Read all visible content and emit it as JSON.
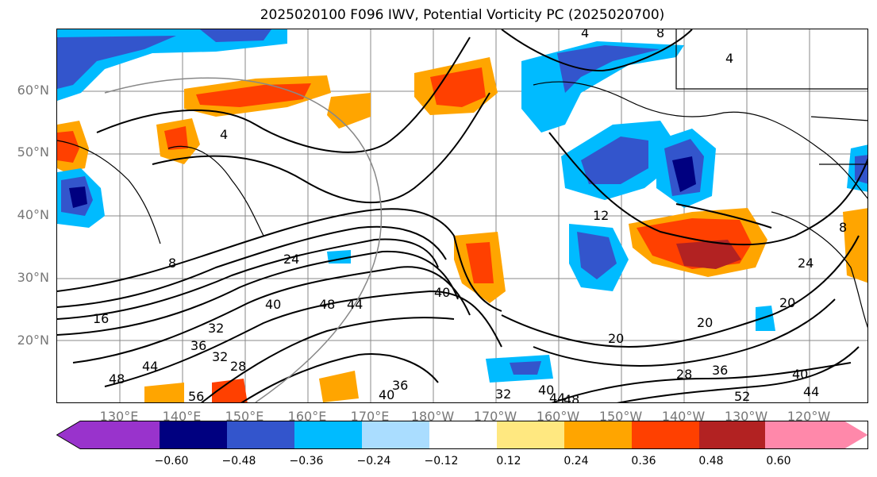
{
  "title": "2025020100 F096 IWV, Potential Vorticity PC (2025020700)",
  "lat_labels": [
    "60°N",
    "50°N",
    "40°N",
    "30°N",
    "20°N"
  ],
  "lon_labels": [
    "130°E",
    "140°E",
    "150°E",
    "160°E",
    "170°E",
    "180°W",
    "170°W",
    "160°W",
    "150°W",
    "140°W",
    "130°W",
    "120°W"
  ],
  "contour_labels": [
    "8",
    "4",
    "4",
    "4",
    "12",
    "8",
    "24",
    "16",
    "32",
    "40",
    "48",
    "44",
    "40",
    "36",
    "32",
    "28",
    "44",
    "48",
    "56",
    "40",
    "36",
    "32",
    "40",
    "44",
    "48",
    "20",
    "20",
    "28",
    "36",
    "52",
    "40",
    "44",
    "24",
    "20",
    "8"
  ],
  "colorbar": {
    "colors": [
      "#9933cc",
      "#000080",
      "#3355cc",
      "#00bbff",
      "#aaddff",
      "#ffffff",
      "#ffe880",
      "#ffa500",
      "#ff4000",
      "#b22222",
      "#ff88aa"
    ],
    "ticks": [
      "−0.60",
      "−0.48",
      "−0.36",
      "−0.24",
      "−0.12",
      "0.12",
      "0.24",
      "0.36",
      "0.48",
      "0.60"
    ]
  }
}
